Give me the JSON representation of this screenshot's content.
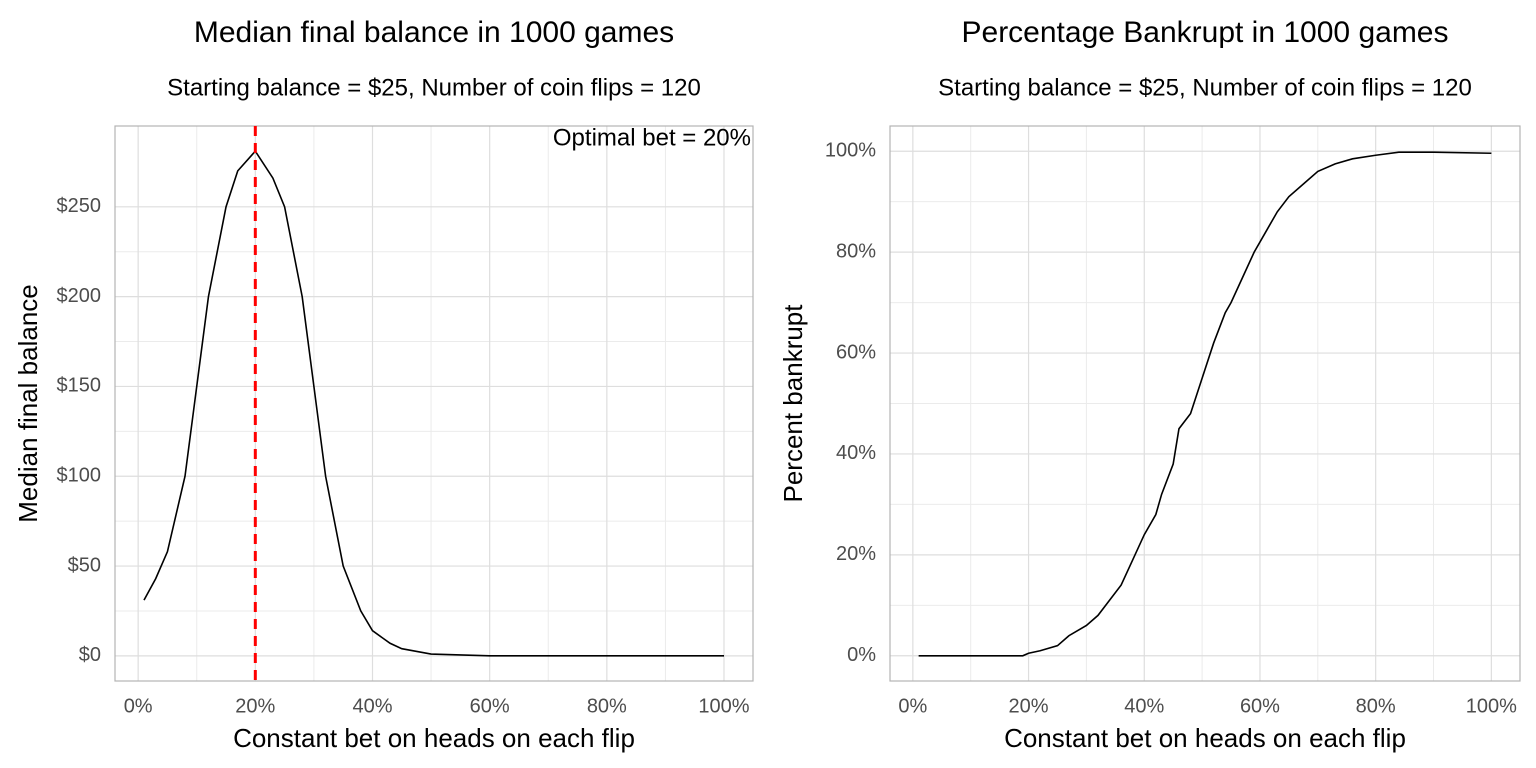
{
  "chart_data": [
    {
      "type": "line",
      "title": "Median final balance in 1000 games",
      "subtitle": "Starting balance = $25, Number of coin flips = 120",
      "xlabel": "Constant bet on heads on each flip",
      "ylabel": "Median final balance",
      "x": [
        1,
        3,
        5,
        8,
        10,
        12,
        15,
        17,
        20,
        23,
        25,
        28,
        30,
        32,
        35,
        38,
        40,
        43,
        45,
        50,
        60,
        70,
        80,
        90,
        100
      ],
      "values": [
        31,
        43,
        58,
        100,
        150,
        200,
        250,
        270,
        281,
        266,
        250,
        200,
        150,
        100,
        50,
        25,
        14,
        7,
        4,
        1,
        0,
        0,
        0,
        0,
        0
      ],
      "color": "#000000",
      "xlim": [
        -3.95,
        104.95
      ],
      "ylim": [
        -14,
        295
      ],
      "xticks": [
        {
          "value": 0,
          "label": "0%"
        },
        {
          "value": 20,
          "label": "20%"
        },
        {
          "value": 40,
          "label": "40%"
        },
        {
          "value": 60,
          "label": "60%"
        },
        {
          "value": 80,
          "label": "80%"
        },
        {
          "value": 100,
          "label": "100%"
        }
      ],
      "yticks": [
        {
          "value": 0,
          "label": "$0"
        },
        {
          "value": 50,
          "label": "$50"
        },
        {
          "value": 100,
          "label": "$100"
        },
        {
          "value": 150,
          "label": "$150"
        },
        {
          "value": 200,
          "label": "$200"
        },
        {
          "value": 250,
          "label": "$250"
        }
      ],
      "grid": true,
      "vline": {
        "x": 20,
        "color": "#ff0000",
        "dashed": true
      },
      "annotation": "Optimal bet = 20%"
    },
    {
      "type": "line",
      "title": "Percentage Bankrupt in 1000 games",
      "subtitle": "Starting balance = $25, Number of coin flips = 120",
      "xlabel": "Constant bet on heads on each flip",
      "ylabel": "Percent bankrupt",
      "x": [
        1,
        10,
        19,
        20,
        22,
        25,
        27,
        30,
        32,
        34,
        36,
        38,
        40,
        42,
        43,
        45,
        46,
        48,
        50,
        52,
        54,
        55,
        57,
        59,
        61,
        63,
        65,
        68,
        70,
        73,
        76,
        80,
        84,
        90,
        100
      ],
      "values": [
        0,
        0,
        0,
        0.5,
        1,
        2,
        4,
        6,
        8,
        11,
        14,
        19,
        24,
        28,
        32,
        38,
        45,
        48,
        55,
        62,
        68,
        70,
        75,
        80,
        84,
        88,
        91,
        94,
        96,
        97.5,
        98.5,
        99.2,
        99.8,
        99.8,
        99.6
      ],
      "color": "#000000",
      "xlim": [
        -3.95,
        104.95
      ],
      "ylim": [
        -5,
        105
      ],
      "xticks": [
        {
          "value": 0,
          "label": "0%"
        },
        {
          "value": 20,
          "label": "20%"
        },
        {
          "value": 40,
          "label": "40%"
        },
        {
          "value": 60,
          "label": "60%"
        },
        {
          "value": 80,
          "label": "80%"
        },
        {
          "value": 100,
          "label": "100%"
        }
      ],
      "yticks": [
        {
          "value": 0,
          "label": "0%"
        },
        {
          "value": 20,
          "label": "20%"
        },
        {
          "value": 40,
          "label": "40%"
        },
        {
          "value": 60,
          "label": "60%"
        },
        {
          "value": 80,
          "label": "80%"
        },
        {
          "value": 100,
          "label": "100%"
        }
      ],
      "grid": true
    }
  ]
}
